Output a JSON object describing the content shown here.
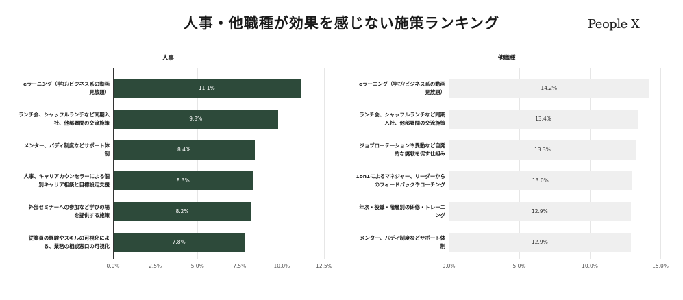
{
  "header": {
    "title": "人事・他職種が効果を感じない施策ランキング",
    "logo": "People X"
  },
  "colors": {
    "hr_bar": "#2d4a3a",
    "other_bar": "#efefef",
    "hr_label": "#ffffff",
    "other_label": "#333333"
  },
  "chart_data": [
    {
      "type": "bar",
      "orientation": "horizontal",
      "title": "人事",
      "categories": [
        "eラーニング（学び/ビジネス系の動画見放題）",
        "ランチ会、シャッフルランチなど同期入社、他部署間の交流施策",
        "メンター、バディ制度などサポート体制",
        "人事、キャリアカウンセラーによる個別キャリア相談と目標設定支援",
        "外部セミナーへの参加など学びの場を提供する施策",
        "従業員の経験やスキルの可視化による、業務の相談窓口の可視化"
      ],
      "category_lines": [
        [
          "eラーニング（学び/ビジネス系の動画",
          "見放題）"
        ],
        [
          "ランチ会、シャッフルランチなど同期入",
          "社、他部署間の交流施策"
        ],
        [
          "メンター、バディ制度などサポート体",
          "制"
        ],
        [
          "人事、キャリアカウンセラーによる個",
          "別キャリア相談と目標設定支援"
        ],
        [
          "外部セミナーへの参加など学びの場",
          "を提供する施策"
        ],
        [
          "従業員の経験やスキルの可視化によ",
          "る、業務の相談窓口の可視化"
        ]
      ],
      "values": [
        11.1,
        9.8,
        8.4,
        8.3,
        8.2,
        7.8
      ],
      "value_labels": [
        "11.1%",
        "9.8%",
        "8.4%",
        "8.3%",
        "8.2%",
        "7.8%"
      ],
      "xlim": [
        0,
        12.5
      ],
      "ticks": [
        0,
        2.5,
        5,
        7.5,
        10,
        12.5
      ],
      "tick_labels": [
        "0.0%",
        "2.5%",
        "5.0%",
        "7.5%",
        "10.0%",
        "12.5%"
      ],
      "grid": true
    },
    {
      "type": "bar",
      "orientation": "horizontal",
      "title": "他職種",
      "categories": [
        "eラーニング（学び/ビジネス系の動画見放題）",
        "ランチ会、シャッフルランチなど同期入社、他部署間の交流施策",
        "ジョブローテーションや異動など自発的な挑戦を促す仕組み",
        "1on1によるマネジャー、リーダーからのフィードバックやコーチング",
        "年次・役職・階層別の研修・トレーニング",
        "メンター、バディ制度などサポート体制"
      ],
      "category_lines": [
        [
          "eラーニング（学び/ビジネス系の動画",
          "見放題）"
        ],
        [
          "ランチ会、シャッフルランチなど同期",
          "入社、他部署間の交流施策"
        ],
        [
          "ジョブローテーションや異動など自発",
          "的な挑戦を促す仕組み"
        ],
        [
          "1on1によるマネジャー、リーダーから",
          "のフィードバックやコーチング"
        ],
        [
          "年次・役職・階層別の研修・トレーニ",
          "ング"
        ],
        [
          "メンター、バディ制度などサポート体",
          "制"
        ]
      ],
      "values": [
        14.2,
        13.4,
        13.3,
        13.0,
        12.9,
        12.9
      ],
      "value_labels": [
        "14.2%",
        "13.4%",
        "13.3%",
        "13.0%",
        "12.9%",
        "12.9%"
      ],
      "xlim": [
        0,
        15
      ],
      "ticks": [
        0,
        5,
        10,
        15
      ],
      "tick_labels": [
        "0.0%",
        "5.0%",
        "10.0%",
        "15.0%"
      ],
      "grid": true
    }
  ]
}
